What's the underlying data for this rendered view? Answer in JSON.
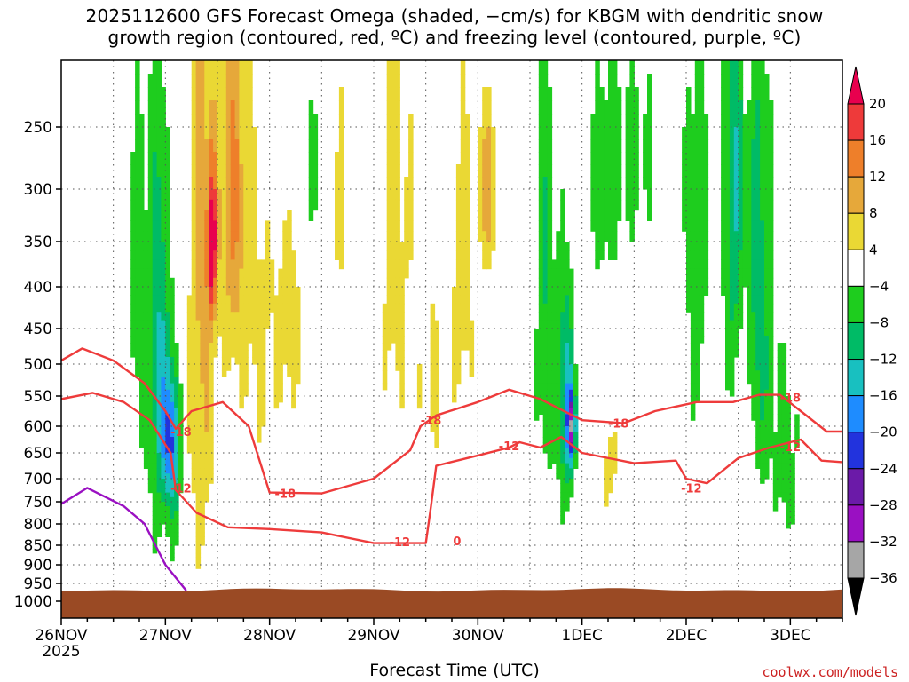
{
  "chart_data": {
    "type": "heatmap",
    "title_line1": "2025112600 GFS Forecast Omega (shaded, −cm/s) for KBGM with dendritic snow",
    "title_line2": "growth region (contoured, red, ºC) and freezing level (contoured, purple, ºC)",
    "xlabel": "Forecast Time (UTC)",
    "ylabel": "",
    "x_ticks": [
      "26NOV",
      "27NOV",
      "28NOV",
      "29NOV",
      "30NOV",
      "1DEC",
      "2DEC",
      "3DEC"
    ],
    "x_year": "2025",
    "x_range_days": [
      0,
      7.5
    ],
    "y_ticks": [
      250,
      300,
      350,
      400,
      450,
      500,
      550,
      600,
      650,
      700,
      750,
      800,
      850,
      900,
      950,
      1000
    ],
    "y_range_hpa": [
      200,
      1040
    ],
    "colorbar_levels": [
      "20",
      "16",
      "12",
      "8",
      "4",
      "−4",
      "−8",
      "−12",
      "−16",
      "−20",
      "−24",
      "−28",
      "−32",
      "−36"
    ],
    "colorbar_colors": [
      "#e8004e",
      "#ee3a3a",
      "#ee7f2a",
      "#e6a83a",
      "#ead834",
      "#ffffff",
      "#1ecd1e",
      "#00bb66",
      "#18c0c0",
      "#1e8cff",
      "#2233dd",
      "#6b1aa8",
      "#9a10c2",
      "#a6a6a6",
      "#000000"
    ],
    "omega_blobs": [
      {
        "t": 0.75,
        "p": 420,
        "tw": 0.12,
        "pw": 300,
        "v": -6
      },
      {
        "t": 0.95,
        "p": 500,
        "tw": 0.1,
        "pw": 320,
        "v": -12
      },
      {
        "t": 1.05,
        "p": 620,
        "tw": 0.08,
        "pw": 120,
        "v": -16
      },
      {
        "t": 1.1,
        "p": 720,
        "tw": 0.06,
        "pw": 180,
        "v": -6
      },
      {
        "t": 1.35,
        "p": 380,
        "tw": 0.14,
        "pw": 500,
        "v": 9
      },
      {
        "t": 1.45,
        "p": 350,
        "tw": 0.05,
        "pw": 80,
        "v": 20
      },
      {
        "t": 1.65,
        "p": 300,
        "tw": 0.12,
        "pw": 180,
        "v": 12
      },
      {
        "t": 1.9,
        "p": 420,
        "tw": 0.2,
        "pw": 280,
        "v": 5
      },
      {
        "t": 2.2,
        "p": 380,
        "tw": 0.12,
        "pw": 200,
        "v": 7
      },
      {
        "t": 2.3,
        "p": 280,
        "tw": 0.3,
        "pw": 80,
        "v": -6
      },
      {
        "t": 2.65,
        "p": 300,
        "tw": 0.15,
        "pw": 150,
        "v": 5
      },
      {
        "t": 3.2,
        "p": 340,
        "tw": 0.18,
        "pw": 260,
        "v": 6
      },
      {
        "t": 3.55,
        "p": 520,
        "tw": 0.12,
        "pw": 200,
        "v": 5
      },
      {
        "t": 3.85,
        "p": 380,
        "tw": 0.14,
        "pw": 220,
        "v": 6
      },
      {
        "t": 4.1,
        "p": 300,
        "tw": 0.06,
        "pw": 80,
        "v": 13
      },
      {
        "t": 4.65,
        "p": 420,
        "tw": 0.1,
        "pw": 320,
        "v": -8
      },
      {
        "t": 4.85,
        "p": 560,
        "tw": 0.08,
        "pw": 200,
        "v": -14
      },
      {
        "t": 4.9,
        "p": 600,
        "tw": 0.04,
        "pw": 60,
        "v": -22
      },
      {
        "t": 5.2,
        "p": 300,
        "tw": 0.15,
        "pw": 120,
        "v": -5
      },
      {
        "t": 5.25,
        "p": 680,
        "tw": 0.12,
        "pw": 120,
        "v": 5
      },
      {
        "t": 5.5,
        "p": 270,
        "tw": 0.3,
        "pw": 100,
        "v": -5
      },
      {
        "t": 6.1,
        "p": 350,
        "tw": 0.12,
        "pw": 250,
        "v": -7
      },
      {
        "t": 6.45,
        "p": 300,
        "tw": 0.1,
        "pw": 220,
        "v": -12
      },
      {
        "t": 6.7,
        "p": 400,
        "tw": 0.12,
        "pw": 300,
        "v": -10
      },
      {
        "t": 6.95,
        "p": 640,
        "tw": 0.15,
        "pw": 220,
        "v": -6
      },
      {
        "t": 6.55,
        "p": 620,
        "tw": 0.06,
        "pw": 180,
        "v": 5
      }
    ],
    "series": [
      {
        "name": "-18 C (DGZ top)",
        "color": "#ee3b3b",
        "points": [
          [
            0.0,
            495
          ],
          [
            0.2,
            478
          ],
          [
            0.5,
            495
          ],
          [
            0.8,
            530
          ],
          [
            1.0,
            575
          ],
          [
            1.1,
            605
          ],
          [
            1.25,
            575
          ],
          [
            1.55,
            560
          ],
          [
            1.8,
            600
          ],
          [
            2.0,
            730
          ],
          [
            2.5,
            732
          ],
          [
            3.0,
            700
          ],
          [
            3.35,
            645
          ],
          [
            3.45,
            600
          ],
          [
            3.6,
            582
          ],
          [
            4.0,
            560
          ],
          [
            4.3,
            540
          ],
          [
            4.6,
            555
          ],
          [
            5.0,
            590
          ],
          [
            5.4,
            595
          ],
          [
            5.7,
            575
          ],
          [
            6.1,
            560
          ],
          [
            6.45,
            560
          ],
          [
            6.7,
            548
          ],
          [
            6.9,
            548
          ],
          [
            7.1,
            575
          ],
          [
            7.35,
            610
          ],
          [
            7.5,
            610
          ]
        ]
      },
      {
        "name": "-12 C (DGZ bottom)",
        "color": "#ee3b3b",
        "points": [
          [
            0.0,
            555
          ],
          [
            0.3,
            545
          ],
          [
            0.6,
            560
          ],
          [
            0.85,
            590
          ],
          [
            1.05,
            650
          ],
          [
            1.1,
            725
          ],
          [
            1.3,
            775
          ],
          [
            1.6,
            808
          ],
          [
            2.0,
            812
          ],
          [
            2.5,
            820
          ],
          [
            3.0,
            845
          ],
          [
            3.5,
            845
          ],
          [
            3.55,
            760
          ],
          [
            3.6,
            675
          ],
          [
            4.0,
            655
          ],
          [
            4.3,
            640
          ],
          [
            4.4,
            630
          ],
          [
            4.6,
            640
          ],
          [
            4.8,
            620
          ],
          [
            5.0,
            650
          ],
          [
            5.5,
            670
          ],
          [
            5.9,
            665
          ],
          [
            6.0,
            700
          ],
          [
            6.2,
            710
          ],
          [
            6.5,
            660
          ],
          [
            6.8,
            640
          ],
          [
            7.0,
            630
          ],
          [
            7.1,
            625
          ],
          [
            7.3,
            665
          ],
          [
            7.5,
            668
          ]
        ]
      },
      {
        "name": "0 C (freezing level)",
        "color": "#9a10c2",
        "points": [
          [
            0.0,
            755
          ],
          [
            0.25,
            720
          ],
          [
            0.6,
            760
          ],
          [
            0.8,
            800
          ],
          [
            1.0,
            900
          ],
          [
            1.2,
            970
          ]
        ]
      }
    ],
    "annotations": [
      {
        "text": "-18",
        "t": 1.15,
        "p": 610,
        "color": "#ee3b3b"
      },
      {
        "text": "-12",
        "t": 1.15,
        "p": 720,
        "color": "#ee3b3b"
      },
      {
        "text": "-18",
        "t": 2.15,
        "p": 732,
        "color": "#ee3b3b"
      },
      {
        "text": "-12",
        "t": 3.25,
        "p": 842,
        "color": "#ee3b3b"
      },
      {
        "text": "-18",
        "t": 3.55,
        "p": 590,
        "color": "#ee3b3b"
      },
      {
        "text": "-12",
        "t": 4.3,
        "p": 637,
        "color": "#ee3b3b"
      },
      {
        "text": "-18",
        "t": 5.35,
        "p": 595,
        "color": "#ee3b3b"
      },
      {
        "text": "-12",
        "t": 6.05,
        "p": 720,
        "color": "#ee3b3b"
      },
      {
        "text": "-18",
        "t": 7.0,
        "p": 552,
        "color": "#ee3b3b"
      },
      {
        "text": "-12",
        "t": 7.0,
        "p": 638,
        "color": "#ee3b3b"
      },
      {
        "text": "0",
        "t": 3.8,
        "p": 840,
        "color": "#ee3b3b"
      }
    ]
  },
  "credit": "coolwx.com/models"
}
